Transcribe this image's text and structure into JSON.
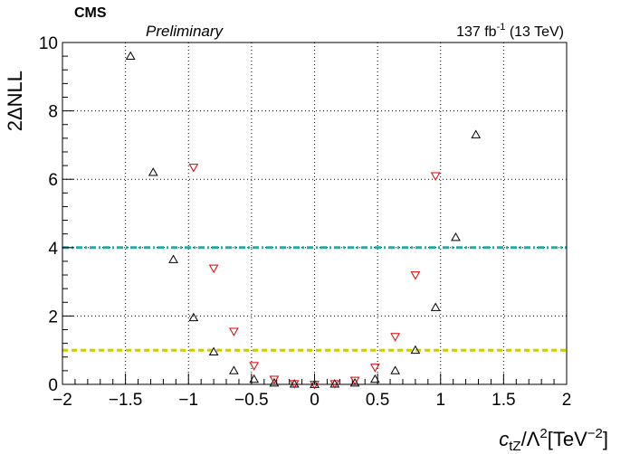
{
  "header": {
    "experiment": "CMS",
    "status": "Preliminary",
    "lumi_value": "137 fb",
    "lumi_exp": "-1",
    "energy": "(13 TeV)"
  },
  "chart_data": {
    "type": "scatter",
    "xlim": [
      -2,
      2
    ],
    "ylim": [
      0,
      10
    ],
    "grid": true,
    "x_ticks": [
      -2,
      -1.5,
      -1,
      -0.5,
      0,
      0.5,
      1,
      1.5,
      2
    ],
    "x_tick_labels": [
      "−2",
      "−1.5",
      "−1",
      "−0.5",
      "0",
      "0.5",
      "1",
      "1.5",
      "2"
    ],
    "y_ticks": [
      0,
      2,
      4,
      6,
      8,
      10
    ],
    "y_tick_labels": [
      "0",
      "2",
      "4",
      "6",
      "8",
      "10"
    ],
    "ylabel": "2ΔNLL",
    "xlabel_parts": {
      "c": "c",
      "c_sub": "tZ",
      "mid": "/Λ",
      "sq": "2",
      "unit": "[TeV",
      "unit_exp": "−2",
      "close": "]"
    },
    "reference_lines": [
      {
        "y": 4,
        "color": "#2ba7a5",
        "style": "dash-dot"
      },
      {
        "y": 1,
        "color": "#cccc00",
        "style": "dashed"
      }
    ],
    "series": [
      {
        "marker": "triangle-up",
        "color": "#000000",
        "x": [
          -1.46,
          -1.28,
          -1.12,
          -0.96,
          -0.8,
          -0.64,
          -0.48,
          -0.32,
          -0.16,
          0.0,
          0.16,
          0.32,
          0.48,
          0.64,
          0.8,
          0.96,
          1.12,
          1.28
        ],
        "y": [
          9.6,
          6.2,
          3.65,
          1.95,
          0.95,
          0.4,
          0.15,
          0.04,
          0.01,
          0.0,
          0.01,
          0.04,
          0.15,
          0.4,
          1.0,
          2.25,
          4.3,
          7.3
        ]
      },
      {
        "marker": "triangle-down",
        "color": "#dd0000",
        "x": [
          -0.96,
          -0.8,
          -0.64,
          -0.48,
          -0.32,
          -0.16,
          0.0,
          0.16,
          0.32,
          0.48,
          0.64,
          0.8,
          0.96
        ],
        "y": [
          6.35,
          3.4,
          1.55,
          0.55,
          0.15,
          0.02,
          0.0,
          0.02,
          0.12,
          0.5,
          1.4,
          3.2,
          6.1
        ]
      }
    ]
  }
}
